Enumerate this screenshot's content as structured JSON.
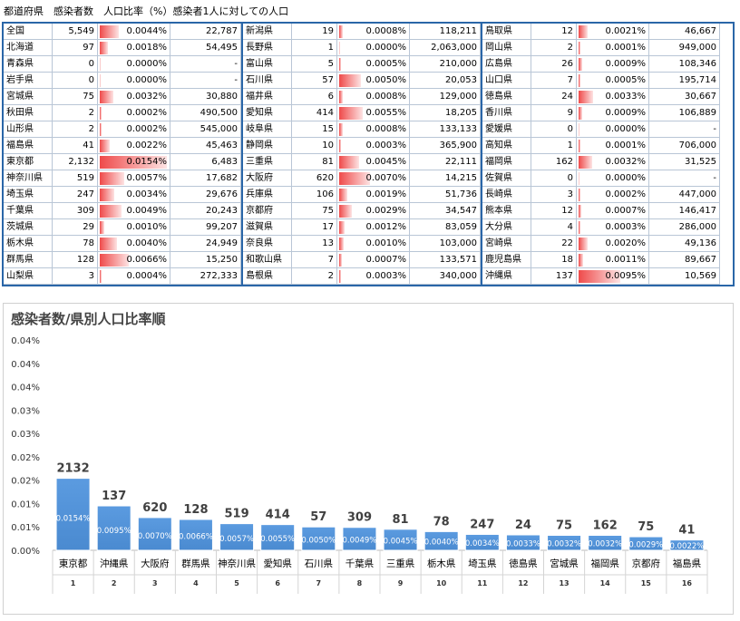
{
  "header": "都道府県　感染者数　人口比率（%）感染者1人に対しての人口",
  "bar_color": "#ef4a4a",
  "rate_scale_max": 0.0154,
  "blocks": [
    [
      {
        "pref": "全国",
        "count": "5,549",
        "rate": "0.0044%",
        "rate_value": 0.0044,
        "per": "22,787"
      },
      {
        "pref": "北海道",
        "count": "97",
        "rate": "0.0018%",
        "rate_value": 0.0018,
        "per": "54,495"
      },
      {
        "pref": "青森県",
        "count": "0",
        "rate": "0.0000%",
        "rate_value": 0,
        "per": "-"
      },
      {
        "pref": "岩手県",
        "count": "0",
        "rate": "0.0000%",
        "rate_value": 0,
        "per": "-"
      },
      {
        "pref": "宮城県",
        "count": "75",
        "rate": "0.0032%",
        "rate_value": 0.0032,
        "per": "30,880"
      },
      {
        "pref": "秋田県",
        "count": "2",
        "rate": "0.0002%",
        "rate_value": 0.0002,
        "per": "490,500"
      },
      {
        "pref": "山形県",
        "count": "2",
        "rate": "0.0002%",
        "rate_value": 0.0002,
        "per": "545,000"
      },
      {
        "pref": "福島県",
        "count": "41",
        "rate": "0.0022%",
        "rate_value": 0.0022,
        "per": "45,463"
      },
      {
        "pref": "東京都",
        "count": "2,132",
        "rate": "0.0154%",
        "rate_value": 0.0154,
        "per": "6,483"
      },
      {
        "pref": "神奈川県",
        "count": "519",
        "rate": "0.0057%",
        "rate_value": 0.0057,
        "per": "17,682"
      },
      {
        "pref": "埼玉県",
        "count": "247",
        "rate": "0.0034%",
        "rate_value": 0.0034,
        "per": "29,676"
      },
      {
        "pref": "千葉県",
        "count": "309",
        "rate": "0.0049%",
        "rate_value": 0.0049,
        "per": "20,243"
      },
      {
        "pref": "茨城県",
        "count": "29",
        "rate": "0.0010%",
        "rate_value": 0.001,
        "per": "99,207"
      },
      {
        "pref": "栃木県",
        "count": "78",
        "rate": "0.0040%",
        "rate_value": 0.004,
        "per": "24,949"
      },
      {
        "pref": "群馬県",
        "count": "128",
        "rate": "0.0066%",
        "rate_value": 0.0066,
        "per": "15,250"
      },
      {
        "pref": "山梨県",
        "count": "3",
        "rate": "0.0004%",
        "rate_value": 0.0004,
        "per": "272,333"
      }
    ],
    [
      {
        "pref": "新潟県",
        "count": "19",
        "rate": "0.0008%",
        "rate_value": 0.0008,
        "per": "118,211"
      },
      {
        "pref": "長野県",
        "count": "1",
        "rate": "0.0000%",
        "rate_value": 0,
        "per": "2,063,000"
      },
      {
        "pref": "富山県",
        "count": "5",
        "rate": "0.0005%",
        "rate_value": 0.0005,
        "per": "210,000"
      },
      {
        "pref": "石川県",
        "count": "57",
        "rate": "0.0050%",
        "rate_value": 0.005,
        "per": "20,053"
      },
      {
        "pref": "福井県",
        "count": "6",
        "rate": "0.0008%",
        "rate_value": 0.0008,
        "per": "129,000"
      },
      {
        "pref": "愛知県",
        "count": "414",
        "rate": "0.0055%",
        "rate_value": 0.0055,
        "per": "18,205"
      },
      {
        "pref": "岐阜県",
        "count": "15",
        "rate": "0.0008%",
        "rate_value": 0.0008,
        "per": "133,133"
      },
      {
        "pref": "静岡県",
        "count": "10",
        "rate": "0.0003%",
        "rate_value": 0.0003,
        "per": "365,900"
      },
      {
        "pref": "三重県",
        "count": "81",
        "rate": "0.0045%",
        "rate_value": 0.0045,
        "per": "22,111"
      },
      {
        "pref": "大阪府",
        "count": "620",
        "rate": "0.0070%",
        "rate_value": 0.007,
        "per": "14,215"
      },
      {
        "pref": "兵庫県",
        "count": "106",
        "rate": "0.0019%",
        "rate_value": 0.0019,
        "per": "51,736"
      },
      {
        "pref": "京都府",
        "count": "75",
        "rate": "0.0029%",
        "rate_value": 0.0029,
        "per": "34,547"
      },
      {
        "pref": "滋賀県",
        "count": "17",
        "rate": "0.0012%",
        "rate_value": 0.0012,
        "per": "83,059"
      },
      {
        "pref": "奈良県",
        "count": "13",
        "rate": "0.0010%",
        "rate_value": 0.001,
        "per": "103,000"
      },
      {
        "pref": "和歌山県",
        "count": "7",
        "rate": "0.0007%",
        "rate_value": 0.0007,
        "per": "133,571"
      },
      {
        "pref": "島根県",
        "count": "2",
        "rate": "0.0003%",
        "rate_value": 0.0003,
        "per": "340,000"
      }
    ],
    [
      {
        "pref": "鳥取県",
        "count": "12",
        "rate": "0.0021%",
        "rate_value": 0.0021,
        "per": "46,667"
      },
      {
        "pref": "岡山県",
        "count": "2",
        "rate": "0.0001%",
        "rate_value": 0.0001,
        "per": "949,000"
      },
      {
        "pref": "広島県",
        "count": "26",
        "rate": "0.0009%",
        "rate_value": 0.0009,
        "per": "108,346"
      },
      {
        "pref": "山口県",
        "count": "7",
        "rate": "0.0005%",
        "rate_value": 0.0005,
        "per": "195,714"
      },
      {
        "pref": "徳島県",
        "count": "24",
        "rate": "0.0033%",
        "rate_value": 0.0033,
        "per": "30,667"
      },
      {
        "pref": "香川県",
        "count": "9",
        "rate": "0.0009%",
        "rate_value": 0.0009,
        "per": "106,889"
      },
      {
        "pref": "愛媛県",
        "count": "0",
        "rate": "0.0000%",
        "rate_value": 0,
        "per": "-"
      },
      {
        "pref": "高知県",
        "count": "1",
        "rate": "0.0001%",
        "rate_value": 0.0001,
        "per": "706,000"
      },
      {
        "pref": "福岡県",
        "count": "162",
        "rate": "0.0032%",
        "rate_value": 0.0032,
        "per": "31,525"
      },
      {
        "pref": "佐賀県",
        "count": "0",
        "rate": "0.0000%",
        "rate_value": 0,
        "per": "-"
      },
      {
        "pref": "長崎県",
        "count": "3",
        "rate": "0.0002%",
        "rate_value": 0.0002,
        "per": "447,000"
      },
      {
        "pref": "熊本県",
        "count": "12",
        "rate": "0.0007%",
        "rate_value": 0.0007,
        "per": "146,417"
      },
      {
        "pref": "大分県",
        "count": "4",
        "rate": "0.0003%",
        "rate_value": 0.0003,
        "per": "286,000"
      },
      {
        "pref": "宮崎県",
        "count": "22",
        "rate": "0.0020%",
        "rate_value": 0.002,
        "per": "49,136"
      },
      {
        "pref": "鹿児島県",
        "count": "18",
        "rate": "0.0011%",
        "rate_value": 0.0011,
        "per": "89,667"
      },
      {
        "pref": "沖縄県",
        "count": "137",
        "rate": "0.0095%",
        "rate_value": 0.0095,
        "per": "10,569"
      }
    ]
  ],
  "chart_data": {
    "type": "bar",
    "title": "感染者数/県別人口比率順",
    "categories": [
      "東京都",
      "沖縄県",
      "大阪府",
      "群馬県",
      "神奈川県",
      "愛知県",
      "石川県",
      "千葉県",
      "三重県",
      "栃木県",
      "埼玉県",
      "徳島県",
      "宮城県",
      "福岡県",
      "京都府",
      "福島県"
    ],
    "ranks": [
      "1",
      "2",
      "3",
      "4",
      "5",
      "6",
      "7",
      "8",
      "9",
      "10",
      "11",
      "12",
      "13",
      "14",
      "15",
      "16"
    ],
    "values": [
      0.0154,
      0.0095,
      0.007,
      0.0066,
      0.0057,
      0.0055,
      0.005,
      0.0049,
      0.0045,
      0.004,
      0.0034,
      0.0033,
      0.0032,
      0.0032,
      0.0029,
      0.0022
    ],
    "value_labels": [
      "0.0154%",
      "0.0095%",
      "0.0070%",
      "0.0066%",
      "0.0057%",
      "0.0055%",
      "0.0050%",
      "0.0049%",
      "0.0045%",
      "0.0040%",
      "0.0034%",
      "0.0033%",
      "0.0032%",
      "0.0032%",
      "0.0029%",
      "0.0022%"
    ],
    "counts": [
      "2132",
      "137",
      "620",
      "128",
      "519",
      "414",
      "57",
      "309",
      "81",
      "78",
      "247",
      "24",
      "75",
      "162",
      "75",
      "41"
    ],
    "y_tick_labels": [
      "0.00%",
      "0.01%",
      "0.01%",
      "0.02%",
      "0.02%",
      "0.03%",
      "0.03%",
      "0.04%",
      "0.04%",
      "0.04%"
    ],
    "ylim": [
      0,
      0.045
    ],
    "grid": false,
    "bar_color": "#4a8ad0"
  }
}
